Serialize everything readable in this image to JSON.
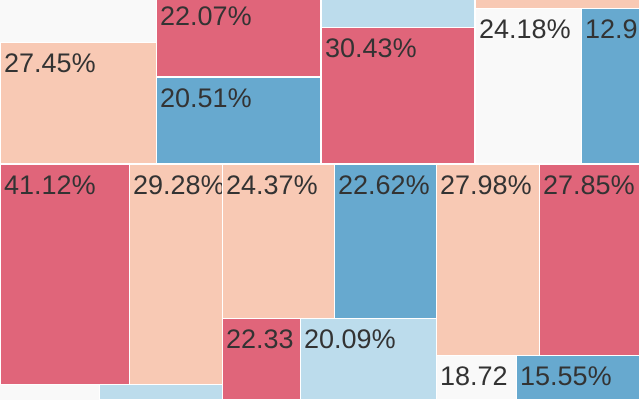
{
  "colors": {
    "background": "#f9f9f9",
    "red": "#e0657a",
    "peach": "#f8c9b4",
    "blue": "#67a9cf",
    "light_blue": "#bcdcec"
  },
  "chart_data": {
    "type": "treemap",
    "title": "",
    "value_format": "percent",
    "cells": [
      {
        "label": "22.07%",
        "value": 22.07,
        "color": "red"
      },
      {
        "label": "27.45%",
        "value": 27.45,
        "color": "peach"
      },
      {
        "label": "20.51%",
        "value": 20.51,
        "color": "blue"
      },
      {
        "label": "",
        "color": "light_blue"
      },
      {
        "label": "30.43%",
        "value": 30.43,
        "color": "red"
      },
      {
        "label": "",
        "color": "peach"
      },
      {
        "label": "24.18%",
        "value": 24.18,
        "color": "background"
      },
      {
        "label": "12.9",
        "color": "blue"
      },
      {
        "label": "41.12%",
        "value": 41.12,
        "color": "red"
      },
      {
        "label": "29.28%",
        "value": 29.28,
        "color": "peach"
      },
      {
        "label": "24.37%",
        "value": 24.37,
        "color": "peach"
      },
      {
        "label": "22.62%",
        "value": 22.62,
        "color": "blue"
      },
      {
        "label": "27.98%",
        "value": 27.98,
        "color": "peach"
      },
      {
        "label": "27.85%",
        "value": 27.85,
        "color": "red"
      },
      {
        "label": "22.33",
        "color": "red"
      },
      {
        "label": "20.09%",
        "value": 20.09,
        "color": "light_blue"
      },
      {
        "label": "18.72",
        "color": "background"
      },
      {
        "label": "15.55%",
        "value": 15.55,
        "color": "blue"
      },
      {
        "label": "",
        "color": "light_blue"
      }
    ]
  }
}
